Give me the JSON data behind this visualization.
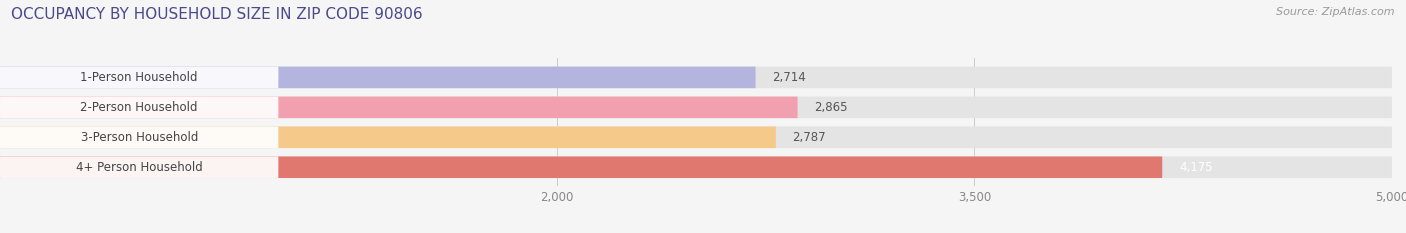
{
  "title": "OCCUPANCY BY HOUSEHOLD SIZE IN ZIP CODE 90806",
  "source": "Source: ZipAtlas.com",
  "categories": [
    "1-Person Household",
    "2-Person Household",
    "3-Person Household",
    "4+ Person Household"
  ],
  "values": [
    2714,
    2865,
    2787,
    4175
  ],
  "bar_colors": [
    "#b3b5de",
    "#f2a0b0",
    "#f5c98a",
    "#e07870"
  ],
  "xlim_min": 0,
  "xlim_max": 5000,
  "xticks": [
    2000,
    3500,
    5000
  ],
  "background_color": "#f5f5f5",
  "bar_background_color": "#e4e4e4",
  "label_box_color": "#ffffff",
  "title_fontsize": 11,
  "label_fontsize": 8.5,
  "value_fontsize": 8.5,
  "source_fontsize": 8,
  "title_color": "#4a4a8a",
  "label_color": "#444444",
  "tick_color": "#888888"
}
